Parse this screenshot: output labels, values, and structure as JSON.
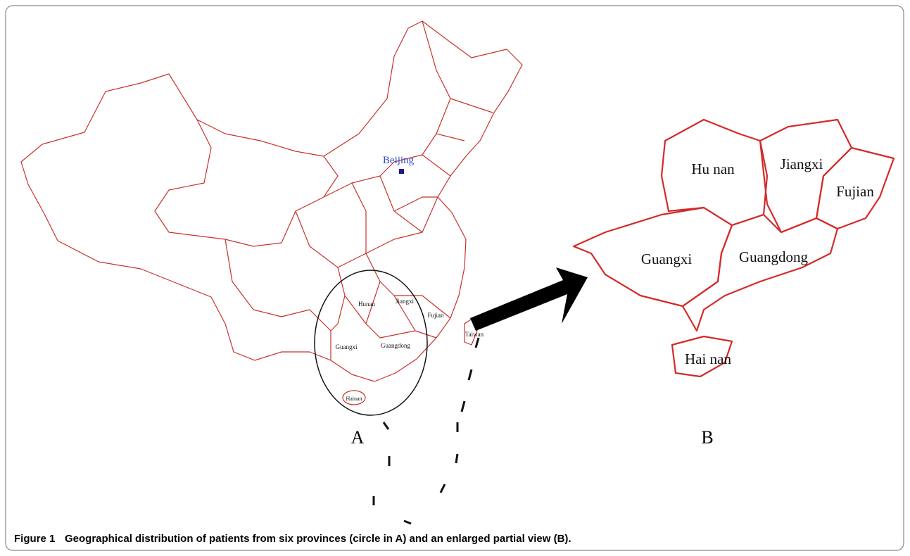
{
  "figure": {
    "label": "Figure 1",
    "caption": "Geographical distribution of patients from six provinces (circle in A) and an enlarged partial view (B).",
    "panels": [
      {
        "letter": "A",
        "labels": [
          "Beijing",
          "Hunan",
          "Jiangxi",
          "Fujian",
          "Guangxi",
          "Guangdong",
          "Hainan",
          "Taiwan"
        ]
      },
      {
        "letter": "B",
        "labels": [
          "Hu nan",
          "Jiangxi",
          "Fujian",
          "Guangxi",
          "Guangdong",
          "Hai nan"
        ]
      }
    ]
  }
}
